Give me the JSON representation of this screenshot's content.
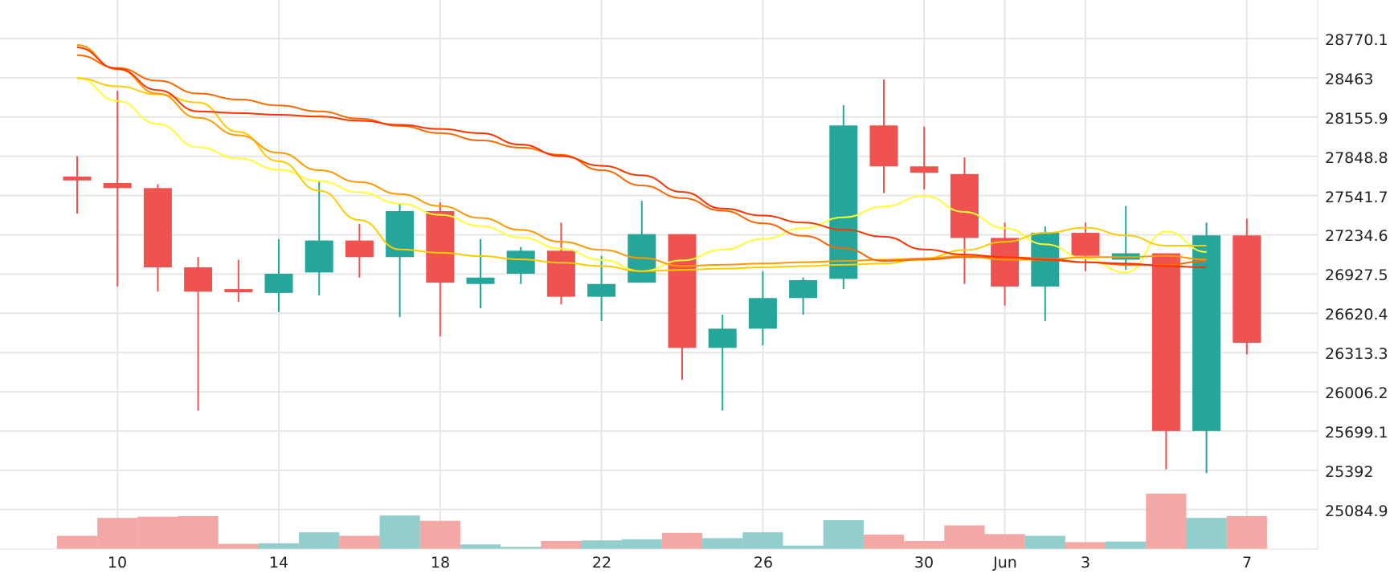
{
  "colors": {
    "up": "#26a69a",
    "down": "#ef5350",
    "up_volume": "#92cecb",
    "down_volume": "#f4a8a6",
    "grid": "#e6e6e6",
    "ma": [
      "#ffff33",
      "#ffcc00",
      "#ff9900",
      "#ff6600",
      "#ff3300"
    ]
  },
  "chart_data": {
    "type": "candlestick",
    "x_ticks": [
      "10",
      "14",
      "18",
      "22",
      "26",
      "30",
      "Jun",
      "3",
      "7"
    ],
    "y_ticks": [
      "28770.1",
      "28463",
      "28155.9",
      "27848.8",
      "27541.7",
      "27234.6",
      "26927.5",
      "26620.4",
      "26313.3",
      "26006.2",
      "25699.1",
      "25392",
      "25084.9"
    ],
    "ylim": [
      24777.8,
      29077.2
    ],
    "candles": [
      {
        "o": 27690,
        "h": 27850,
        "l": 27400,
        "c": 27660
      },
      {
        "o": 27640,
        "h": 28360,
        "l": 26830,
        "c": 27600
      },
      {
        "o": 27600,
        "h": 27630,
        "l": 26790,
        "c": 26980
      },
      {
        "o": 26980,
        "h": 27060,
        "l": 25860,
        "c": 26790
      },
      {
        "o": 26810,
        "h": 27040,
        "l": 26710,
        "c": 26790
      },
      {
        "o": 26780,
        "h": 27200,
        "l": 26630,
        "c": 26930
      },
      {
        "o": 26940,
        "h": 27650,
        "l": 26760,
        "c": 27190
      },
      {
        "o": 27190,
        "h": 27320,
        "l": 26900,
        "c": 27060
      },
      {
        "o": 27060,
        "h": 27480,
        "l": 26590,
        "c": 27420
      },
      {
        "o": 27420,
        "h": 27490,
        "l": 26440,
        "c": 26860
      },
      {
        "o": 26850,
        "h": 27200,
        "l": 26660,
        "c": 26900
      },
      {
        "o": 26930,
        "h": 27140,
        "l": 26850,
        "c": 27110
      },
      {
        "o": 27110,
        "h": 27330,
        "l": 26690,
        "c": 26750
      },
      {
        "o": 26750,
        "h": 27070,
        "l": 26560,
        "c": 26850
      },
      {
        "o": 26860,
        "h": 27500,
        "l": 26860,
        "c": 27240
      },
      {
        "o": 27240,
        "h": 27240,
        "l": 26100,
        "c": 26350
      },
      {
        "o": 26350,
        "h": 26610,
        "l": 25860,
        "c": 26500
      },
      {
        "o": 26500,
        "h": 26950,
        "l": 26370,
        "c": 26740
      },
      {
        "o": 26740,
        "h": 26900,
        "l": 26610,
        "c": 26880
      },
      {
        "o": 26890,
        "h": 28250,
        "l": 26810,
        "c": 28090
      },
      {
        "o": 28090,
        "h": 28450,
        "l": 27560,
        "c": 27770
      },
      {
        "o": 27770,
        "h": 28080,
        "l": 27590,
        "c": 27720
      },
      {
        "o": 27710,
        "h": 27840,
        "l": 26850,
        "c": 27210
      },
      {
        "o": 27210,
        "h": 27330,
        "l": 26680,
        "c": 26830
      },
      {
        "o": 26830,
        "h": 27300,
        "l": 26560,
        "c": 27250
      },
      {
        "o": 27250,
        "h": 27330,
        "l": 26950,
        "c": 27070
      },
      {
        "o": 27040,
        "h": 27460,
        "l": 26960,
        "c": 27090
      },
      {
        "o": 27090,
        "h": 27090,
        "l": 25400,
        "c": 25700
      },
      {
        "o": 25700,
        "h": 27330,
        "l": 25370,
        "c": 27230
      },
      {
        "o": 27230,
        "h": 27360,
        "l": 26300,
        "c": 26390
      }
    ],
    "volume": [
      0.23,
      0.54,
      0.56,
      0.57,
      0.09,
      0.1,
      0.29,
      0.23,
      0.58,
      0.49,
      0.08,
      0.04,
      0.14,
      0.15,
      0.17,
      0.28,
      0.19,
      0.29,
      0.06,
      0.5,
      0.25,
      0.14,
      0.41,
      0.26,
      0.23,
      0.12,
      0.13,
      0.96,
      0.54,
      0.57
    ],
    "ma_lines": [
      [
        null,
        28463,
        null,
        null,
        27920,
        null,
        null,
        null,
        null,
        null,
        null,
        null,
        null,
        null,
        null,
        26950,
        null,
        null,
        null,
        null,
        null,
        null,
        27540,
        null,
        null,
        27160,
        null,
        26940,
        27260,
        27100
      ],
      [
        null,
        28460,
        null,
        null,
        28270,
        null,
        null,
        null,
        null,
        27120,
        null,
        null,
        null,
        null,
        26990,
        26950,
        null,
        null,
        null,
        null,
        null,
        27010,
        27050,
        null,
        27180,
        27250,
        27290,
        27230,
        27150,
        27150
      ],
      [
        null,
        28720,
        null,
        null,
        28150,
        null,
        null,
        27740,
        null,
        null,
        null,
        null,
        null,
        27180,
        null,
        null,
        26990,
        null,
        null,
        null,
        null,
        27040,
        27050,
        27070,
        27040,
        27040,
        27060,
        27060,
        27070,
        27040
      ],
      [
        null,
        28640,
        null,
        null,
        28340,
        null,
        null,
        28200,
        null,
        null,
        null,
        null,
        null,
        27860,
        null,
        27620,
        null,
        null,
        null,
        null,
        null,
        27030,
        27040,
        27060,
        27060,
        27050,
        27020,
        27000,
        27000,
        27030
      ],
      [
        null,
        28700,
        null,
        null,
        28200,
        null,
        null,
        28160,
        null,
        null,
        null,
        28030,
        null,
        27850,
        null,
        27700,
        null,
        27440,
        null,
        null,
        null,
        27220,
        27120,
        27080,
        27060,
        27040,
        27020,
        27010,
        26990,
        26980
      ]
    ]
  }
}
